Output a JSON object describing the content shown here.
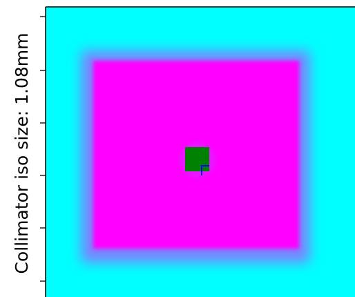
{
  "chart_data": {
    "type": "heatmap",
    "title": "",
    "xlabel": "",
    "ylabel": "Collimator iso size: 1.08mm",
    "x_ticks_visible": false,
    "y_ticks_labeled": false,
    "grid": false,
    "legend": "none",
    "colors": {
      "background": "#00FFFF",
      "field": "#FF00FF",
      "field_edge": "#7F7FFF",
      "marker": "#008000",
      "marker_edge": "#0000FF",
      "axes_frame": "#000000"
    },
    "regions": [
      {
        "name": "background",
        "color": "#00FFFF"
      },
      {
        "name": "collimator field",
        "color": "#FF00FF"
      },
      {
        "name": "isocenter marker",
        "color": "#008000"
      }
    ]
  }
}
